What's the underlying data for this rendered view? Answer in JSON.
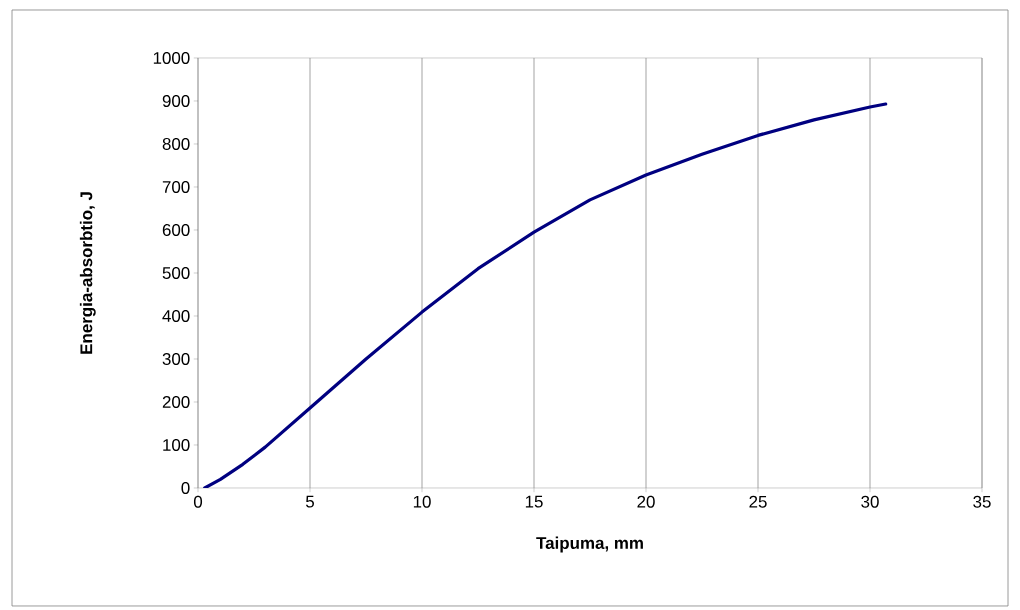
{
  "chart_data": {
    "type": "line",
    "xlabel": "Taipuma, mm",
    "ylabel": "Energia-absorbtio, J",
    "series": [
      {
        "color": "#000080",
        "x": [
          0.3,
          1,
          2,
          3,
          5,
          7.5,
          10,
          12.5,
          15,
          17.5,
          20,
          22.5,
          25,
          27.5,
          30,
          30.7
        ],
        "values": [
          0,
          20,
          55,
          95,
          186,
          300,
          409,
          510,
          595,
          670,
          728,
          776,
          820,
          856,
          886,
          893
        ]
      }
    ],
    "xlim": [
      0,
      35
    ],
    "xticks": [
      0,
      5,
      10,
      15,
      20,
      25,
      30,
      35
    ],
    "ylim": [
      0,
      1000
    ],
    "yticks": [
      0,
      100,
      200,
      300,
      400,
      500,
      600,
      700,
      800,
      900,
      1000
    ],
    "grid": "x",
    "marker": "none",
    "line_style": "solid"
  }
}
